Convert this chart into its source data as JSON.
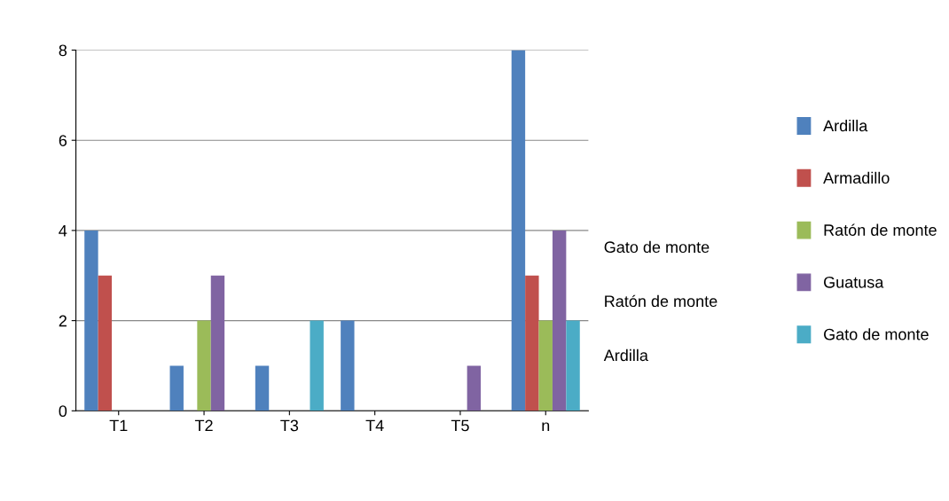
{
  "chart_data": {
    "type": "bar",
    "categories": [
      "T1",
      "T2",
      "T3",
      "T4",
      "T5",
      "n"
    ],
    "series": [
      {
        "name": "Ardilla",
        "color": "#4f81bd",
        "values": [
          4,
          1,
          1,
          2,
          0,
          8
        ]
      },
      {
        "name": "Armadillo",
        "color": "#c0504d",
        "values": [
          3,
          0,
          0,
          0,
          0,
          3
        ]
      },
      {
        "name": "Ratón de monte",
        "color": "#9bbb59",
        "values": [
          0,
          2,
          0,
          0,
          0,
          2
        ]
      },
      {
        "name": "Guatusa",
        "color": "#8064a2",
        "values": [
          0,
          3,
          0,
          0,
          1,
          4
        ]
      },
      {
        "name": "Gato de monte",
        "color": "#4bacc6",
        "values": [
          0,
          0,
          2,
          0,
          0,
          2
        ]
      }
    ],
    "ylim": [
      0,
      8
    ],
    "yticks": [
      0,
      2,
      4,
      6,
      8
    ],
    "grid": "y",
    "legend": "right",
    "annotations": [
      "Gato de monte",
      "Ratón de monte",
      "Ardilla"
    ]
  }
}
